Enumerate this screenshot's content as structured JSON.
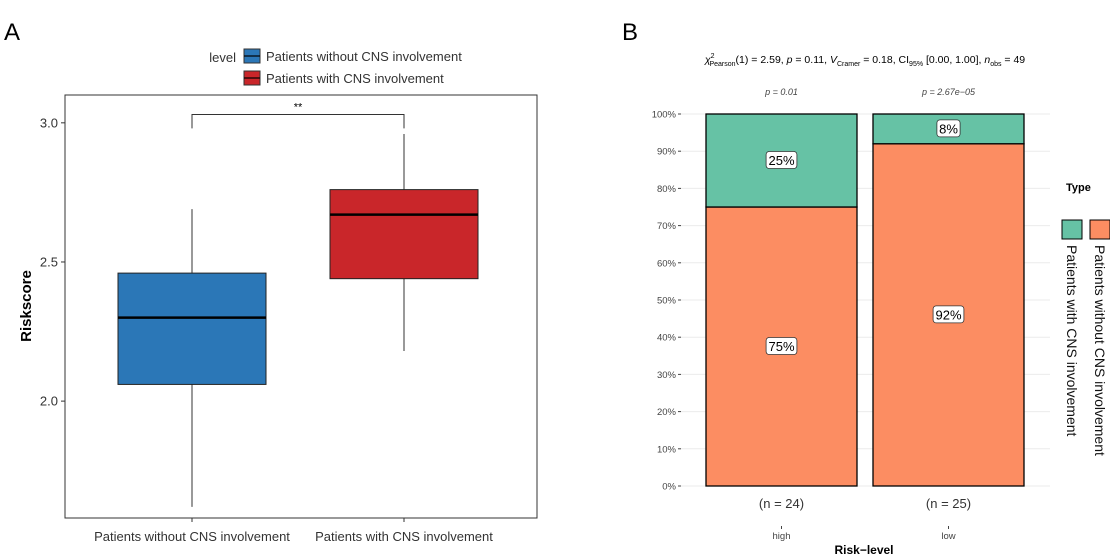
{
  "panels": {
    "a": "A",
    "b": "B"
  },
  "chart_data": [
    {
      "type": "box",
      "legend": {
        "title": "level",
        "entries": [
          {
            "label": "Patients without CNS involvement",
            "color": "#2b77b7"
          },
          {
            "label": "Patients with CNS involvement",
            "color": "#c9262a"
          }
        ]
      },
      "ylabel": "Riskscore",
      "ylim": [
        1.58,
        3.1
      ],
      "yticks": [
        2.0,
        2.5,
        3.0
      ],
      "ytick_labels": [
        "2.0",
        "2.5",
        "3.0"
      ],
      "categories": [
        "Patients without CNS involvement",
        "Patients with CNS involvement"
      ],
      "boxes": [
        {
          "whisker_low": 1.62,
          "q1": 2.06,
          "median": 2.3,
          "q3": 2.46,
          "whisker_high": 2.69,
          "color": "#2b77b7"
        },
        {
          "whisker_low": 2.18,
          "q1": 2.44,
          "median": 2.67,
          "q3": 2.76,
          "whisker_high": 2.96,
          "color": "#c9262a"
        }
      ],
      "significance": {
        "label": "**",
        "y": 3.03,
        "tip": 2.98
      }
    },
    {
      "type": "bar",
      "stacked": true,
      "subtitle_parts": [
        "χ",
        "2",
        "Pearson",
        "(1) = 2.59, ",
        "p",
        " = 0.11, ",
        "V",
        "Cramer",
        " = 0.18, CI",
        "95%",
        " [0.00, 1.00], ",
        "n",
        "obs",
        " = 49"
      ],
      "xlabel": "Risk−level",
      "categories": [
        "high",
        "low"
      ],
      "n_labels": [
        "(n = 24)",
        "(n = 25)"
      ],
      "p_labels": [
        "p = 0.01",
        "p = 2.67e−05"
      ],
      "ylim": [
        0,
        100
      ],
      "yticks": [
        0,
        10,
        20,
        30,
        40,
        50,
        60,
        70,
        80,
        90,
        100
      ],
      "ytick_labels": [
        "0%",
        "10%",
        "20%",
        "30%",
        "40%",
        "50%",
        "60%",
        "70%",
        "80%",
        "90%",
        "100%"
      ],
      "legend": {
        "title": "Type",
        "position": "right"
      },
      "series": [
        {
          "name": "Patients without CNS involvement",
          "color": "#fc8d62",
          "values": [
            75,
            92
          ],
          "labels": [
            "75%",
            "92%"
          ]
        },
        {
          "name": "Patients with CNS involvement",
          "color": "#66c2a5",
          "values": [
            25,
            8
          ],
          "labels": [
            "25%",
            "8%"
          ]
        }
      ]
    }
  ]
}
